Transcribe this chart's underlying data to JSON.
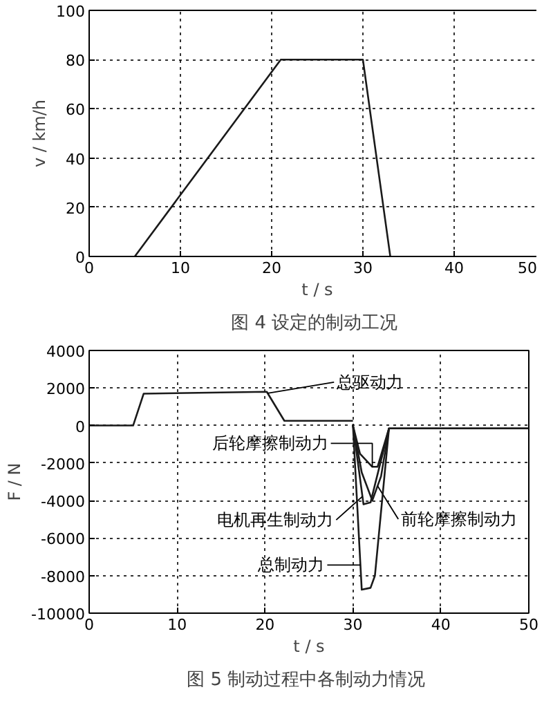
{
  "chart_data": [
    {
      "type": "line",
      "title": "图 4  设定的制动工况",
      "xlabel": "t / s",
      "ylabel": "v / km/h",
      "x": [
        5,
        21,
        30,
        33
      ],
      "series": [
        {
          "color": "#1a1a1a",
          "values": [
            0,
            80,
            80,
            0
          ]
        }
      ],
      "xlim": [
        0,
        50
      ],
      "ylim": [
        0,
        100
      ],
      "xticks": [
        0,
        10,
        20,
        30,
        40,
        50
      ],
      "yticks": [
        0,
        20,
        40,
        60,
        80,
        100
      ],
      "grid": true
    },
    {
      "type": "line",
      "title": "图 5  制动过程中各制动力情况",
      "xlabel": "t / s",
      "ylabel": "F / N",
      "series": [
        {
          "name": "总驱动力",
          "color": "#1a1a1a",
          "x": [
            0,
            5,
            6.2,
            20.2,
            22.2,
            30
          ],
          "values": [
            0,
            0,
            1700,
            1800,
            250,
            250
          ]
        },
        {
          "name": "后轮摩擦制动力",
          "color": "#1a1a1a",
          "x": [
            30,
            30.8,
            32.2,
            32.8,
            34.1
          ],
          "values": [
            0,
            -1500,
            -2200,
            -2200,
            -150
          ]
        },
        {
          "name": "电机再生制动力",
          "color": "#1a1a1a",
          "x": [
            30,
            31.2,
            32,
            34.1
          ],
          "values": [
            0,
            -4200,
            -4100,
            -150
          ]
        },
        {
          "name": "前轮摩擦制动力",
          "color": "#1a1a1a",
          "x": [
            30,
            31,
            32.2,
            33.2,
            34.1
          ],
          "values": [
            0,
            -2500,
            -4000,
            -2700,
            -150
          ]
        },
        {
          "name": "总制动力",
          "color": "#1a1a1a",
          "x": [
            30,
            31,
            32,
            32.5,
            34.1,
            50
          ],
          "values": [
            0,
            -8750,
            -8650,
            -8000,
            -150,
            -150
          ]
        }
      ],
      "xlim": [
        0,
        50
      ],
      "ylim": [
        -10000,
        4000
      ],
      "xticks": [
        0,
        10,
        20,
        30,
        40,
        50
      ],
      "yticks": [
        -10000,
        -8000,
        -6000,
        -4000,
        -2000,
        0,
        2000,
        4000
      ],
      "grid": true
    }
  ]
}
